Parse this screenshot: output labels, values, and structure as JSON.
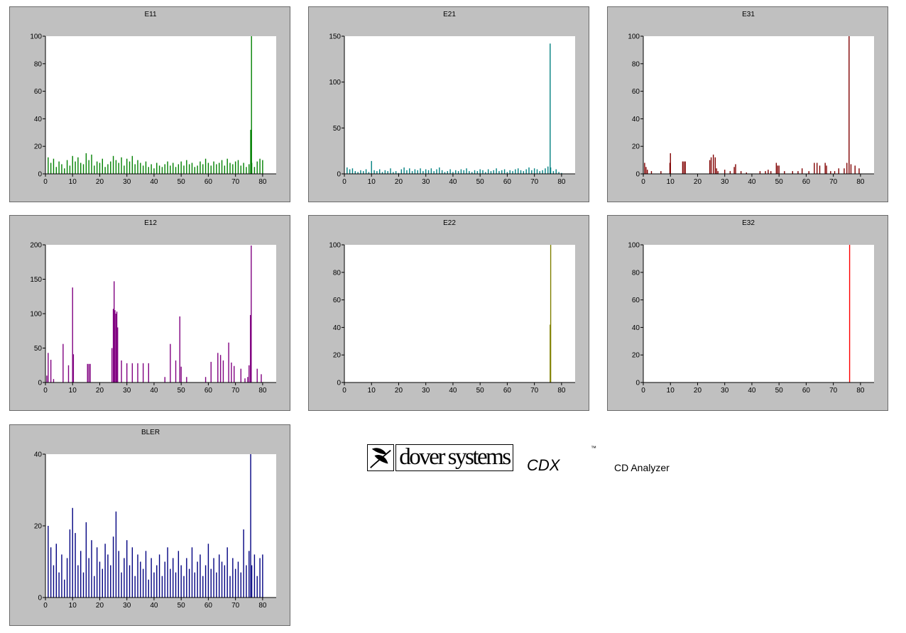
{
  "chart_data": [
    {
      "type": "bar",
      "title": "E11",
      "color": "#008000",
      "xlim": [
        0,
        85
      ],
      "ylim": [
        0,
        100
      ],
      "xticks": [
        0,
        10,
        20,
        30,
        40,
        50,
        60,
        70,
        80
      ],
      "yticks": [
        0,
        20,
        40,
        60,
        80,
        100
      ],
      "x": [
        1,
        2,
        3,
        4,
        5,
        6,
        7,
        8,
        9,
        10,
        11,
        12,
        13,
        14,
        15,
        16,
        17,
        18,
        19,
        20,
        21,
        22,
        23,
        24,
        25,
        26,
        27,
        28,
        29,
        30,
        31,
        32,
        33,
        34,
        35,
        36,
        37,
        38,
        39,
        40,
        41,
        42,
        43,
        44,
        45,
        46,
        47,
        48,
        49,
        50,
        51,
        52,
        53,
        54,
        55,
        56,
        57,
        58,
        59,
        60,
        61,
        62,
        63,
        64,
        65,
        66,
        67,
        68,
        69,
        70,
        71,
        72,
        73,
        74,
        75,
        75.6,
        75.9,
        76,
        77,
        78,
        79,
        80
      ],
      "values": [
        12,
        8,
        11,
        5,
        9,
        7,
        4,
        10,
        6,
        13,
        9,
        12,
        8,
        7,
        15,
        10,
        14,
        6,
        9,
        8,
        11,
        5,
        7,
        9,
        13,
        10,
        8,
        12,
        6,
        11,
        9,
        13,
        7,
        10,
        8,
        6,
        9,
        5,
        7,
        4,
        8,
        6,
        5,
        7,
        9,
        6,
        8,
        5,
        7,
        9,
        6,
        10,
        7,
        8,
        5,
        6,
        9,
        7,
        11,
        8,
        6,
        9,
        7,
        8,
        10,
        6,
        11,
        8,
        7,
        9,
        10,
        6,
        8,
        5,
        7,
        32,
        100,
        8,
        5,
        9,
        11,
        10
      ]
    },
    {
      "type": "bar",
      "title": "E21",
      "color": "#008080",
      "xlim": [
        0,
        85
      ],
      "ylim": [
        0,
        150
      ],
      "xticks": [
        0,
        10,
        20,
        30,
        40,
        50,
        60,
        70,
        80
      ],
      "yticks": [
        0,
        50,
        100,
        150
      ],
      "x": [
        1,
        2,
        3,
        4,
        5,
        6,
        7,
        8,
        9,
        10,
        11,
        12,
        13,
        14,
        15,
        16,
        17,
        18,
        19,
        20,
        21,
        22,
        23,
        24,
        25,
        26,
        27,
        28,
        29,
        30,
        31,
        32,
        33,
        34,
        35,
        36,
        37,
        38,
        39,
        40,
        41,
        42,
        43,
        44,
        45,
        46,
        47,
        48,
        49,
        50,
        51,
        52,
        53,
        54,
        55,
        56,
        57,
        58,
        59,
        60,
        61,
        62,
        63,
        64,
        65,
        66,
        67,
        68,
        69,
        70,
        71,
        72,
        73,
        74,
        75,
        75.8,
        76,
        77,
        78,
        79,
        80
      ],
      "values": [
        7,
        5,
        6,
        3,
        2,
        4,
        3,
        5,
        2,
        14,
        4,
        3,
        5,
        2,
        4,
        3,
        6,
        2,
        3,
        1,
        5,
        7,
        4,
        6,
        3,
        5,
        4,
        6,
        3,
        5,
        4,
        6,
        3,
        5,
        7,
        4,
        2,
        3,
        5,
        2,
        4,
        3,
        5,
        4,
        6,
        3,
        2,
        4,
        3,
        5,
        4,
        2,
        5,
        3,
        4,
        6,
        3,
        4,
        5,
        2,
        4,
        3,
        5,
        6,
        4,
        3,
        5,
        7,
        4,
        6,
        5,
        3,
        4,
        6,
        8,
        142,
        7,
        3,
        5,
        2,
        1
      ]
    },
    {
      "type": "bar",
      "title": "E31",
      "color": "#800000",
      "xlim": [
        0,
        85
      ],
      "ylim": [
        0,
        100
      ],
      "xticks": [
        0,
        10,
        20,
        30,
        40,
        50,
        60,
        70,
        80
      ],
      "yticks": [
        0,
        20,
        40,
        60,
        80,
        100
      ],
      "x": [
        0.5,
        1,
        1.5,
        3,
        6.5,
        9.8,
        10,
        14.5,
        15,
        15.5,
        24.5,
        25,
        25.8,
        26.5,
        27,
        27.5,
        30,
        32,
        33.5,
        34,
        36,
        38,
        43,
        45,
        46,
        47,
        49,
        49.5,
        50,
        52,
        55,
        57,
        58.5,
        61,
        63,
        64,
        65,
        67,
        67.5,
        69,
        70.5,
        72,
        74,
        75,
        75.8,
        76.5,
        78,
        79.5
      ],
      "values": [
        8,
        5,
        3,
        2,
        2,
        8,
        15,
        9,
        9,
        9,
        10,
        12,
        14,
        12,
        4,
        2,
        3,
        2,
        5,
        7,
        2,
        1,
        2,
        2,
        3,
        2,
        8,
        6,
        6,
        2,
        2,
        2,
        4,
        2,
        8,
        8,
        6,
        8,
        6,
        2,
        2,
        4,
        4,
        8,
        100,
        7,
        6,
        4
      ]
    },
    {
      "type": "bar",
      "title": "E12",
      "color": "#800080",
      "xlim": [
        0,
        85
      ],
      "ylim": [
        0,
        200
      ],
      "xticks": [
        0,
        10,
        20,
        30,
        40,
        50,
        60,
        70,
        80
      ],
      "yticks": [
        0,
        50,
        100,
        150,
        200
      ],
      "x": [
        0.5,
        1,
        2,
        3,
        6.5,
        8.5,
        10,
        10.3,
        15.5,
        16,
        16.5,
        24.5,
        25,
        25.3,
        25.6,
        26,
        26.3,
        26.6,
        28,
        30,
        32,
        34,
        36,
        38,
        44,
        46,
        48,
        49.5,
        50,
        52,
        59,
        61,
        63.5,
        64.5,
        65.5,
        67.5,
        68.5,
        69.5,
        72,
        73.5,
        74.5,
        75,
        75.5,
        75.8,
        78,
        79.5
      ],
      "values": [
        10,
        43,
        33,
        5,
        56,
        25,
        138,
        41,
        27,
        27,
        27,
        50,
        107,
        147,
        105,
        100,
        103,
        80,
        32,
        28,
        28,
        28,
        28,
        28,
        8,
        56,
        32,
        96,
        23,
        8,
        8,
        30,
        43,
        40,
        32,
        58,
        29,
        24,
        20,
        6,
        8,
        25,
        98,
        199,
        20,
        12
      ]
    },
    {
      "type": "bar",
      "title": "E22",
      "color": "#808000",
      "xlim": [
        0,
        85
      ],
      "ylim": [
        0,
        100
      ],
      "xticks": [
        0,
        10,
        20,
        30,
        40,
        50,
        60,
        70,
        80
      ],
      "yticks": [
        0,
        20,
        40,
        60,
        80,
        100
      ],
      "x": [
        75.8,
        76
      ],
      "values": [
        42,
        100
      ]
    },
    {
      "type": "bar",
      "title": "E32",
      "color": "#ff0000",
      "xlim": [
        0,
        85
      ],
      "ylim": [
        0,
        100
      ],
      "xticks": [
        0,
        10,
        20,
        30,
        40,
        50,
        60,
        70,
        80
      ],
      "yticks": [
        0,
        20,
        40,
        60,
        80,
        100
      ],
      "x": [
        76
      ],
      "values": [
        100
      ]
    },
    {
      "type": "bar",
      "title": "BLER",
      "color": "#000080",
      "xlim": [
        0,
        85
      ],
      "ylim": [
        0,
        40
      ],
      "xticks": [
        0,
        10,
        20,
        30,
        40,
        50,
        60,
        70,
        80
      ],
      "yticks": [
        0,
        20,
        40
      ],
      "x": [
        1,
        2,
        3,
        4,
        5,
        6,
        7,
        8,
        9,
        10,
        11,
        12,
        13,
        14,
        15,
        16,
        17,
        18,
        19,
        20,
        21,
        22,
        23,
        24,
        25,
        26,
        27,
        28,
        29,
        30,
        31,
        32,
        33,
        34,
        35,
        36,
        37,
        38,
        39,
        40,
        41,
        42,
        43,
        44,
        45,
        46,
        47,
        48,
        49,
        50,
        51,
        52,
        53,
        54,
        55,
        56,
        57,
        58,
        59,
        60,
        61,
        62,
        63,
        64,
        65,
        66,
        67,
        68,
        69,
        70,
        71,
        72,
        73,
        74,
        75,
        75.6,
        76,
        77,
        78,
        79,
        80
      ],
      "values": [
        20,
        14,
        9,
        15,
        7,
        12,
        5,
        11,
        19,
        25,
        18,
        9,
        13,
        7,
        21,
        11,
        16,
        6,
        14,
        10,
        8,
        15,
        12,
        9,
        17,
        24,
        13,
        7,
        11,
        16,
        9,
        14,
        6,
        12,
        10,
        8,
        13,
        5,
        11,
        7,
        9,
        12,
        6,
        10,
        14,
        8,
        11,
        7,
        13,
        9,
        6,
        11,
        8,
        14,
        7,
        10,
        12,
        6,
        9,
        15,
        8,
        11,
        7,
        12,
        10,
        9,
        14,
        6,
        11,
        8,
        10,
        7,
        19,
        9,
        13,
        40,
        9,
        12,
        6,
        11,
        12
      ]
    }
  ],
  "logo": {
    "brand": "dover systems",
    "product": "CDX",
    "trademark": "™",
    "caption": "CD Analyzer"
  }
}
